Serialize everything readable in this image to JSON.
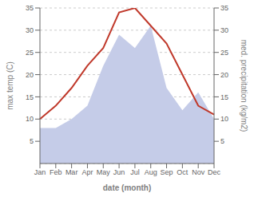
{
  "chart_data": {
    "type": "line",
    "categories": [
      "Jan",
      "Feb",
      "Mar",
      "Apr",
      "May",
      "Jun",
      "Jul",
      "Aug",
      "Sep",
      "Oct",
      "Nov",
      "Dec"
    ],
    "xlabel": "date (month)",
    "ylabel": "max temp (C)",
    "y2label": "med. precipitation (kg/m2)",
    "series": [
      {
        "type": "area",
        "color": "#c5cce8",
        "axis": "y2",
        "values": [
          8,
          8,
          10,
          13,
          22,
          29,
          26,
          31,
          17,
          12,
          16,
          10
        ]
      },
      {
        "type": "line",
        "color": "#c0392b",
        "values": [
          10,
          13,
          17,
          22,
          26,
          34,
          35,
          31,
          27,
          20,
          13,
          11
        ]
      }
    ],
    "ylim": [
      0,
      35
    ],
    "yticks": [
      5,
      10,
      15,
      20,
      25,
      30,
      35
    ],
    "y2lim": [
      0,
      35
    ],
    "y2ticks": [
      5,
      10,
      15,
      20,
      25,
      30,
      35
    ],
    "grid": true
  }
}
